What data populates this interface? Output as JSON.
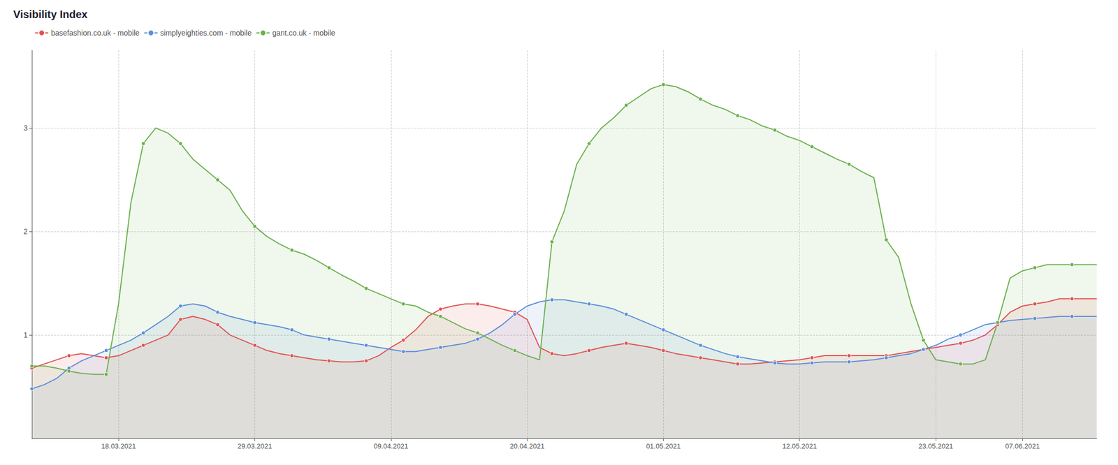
{
  "chart_data": {
    "type": "line",
    "title": "Visibility Index",
    "categories": [
      null,
      null,
      null,
      null,
      null,
      null,
      null,
      "18.03.2021",
      null,
      null,
      null,
      null,
      null,
      null,
      null,
      null,
      null,
      null,
      "29.03.2021",
      null,
      null,
      null,
      null,
      null,
      null,
      null,
      null,
      null,
      null,
      "09.04.2021",
      null,
      null,
      null,
      null,
      null,
      null,
      null,
      null,
      null,
      null,
      "20.04.2021",
      null,
      null,
      null,
      null,
      null,
      null,
      null,
      null,
      null,
      null,
      "01.05.2021",
      null,
      null,
      null,
      null,
      null,
      null,
      null,
      null,
      null,
      null,
      "12.05.2021",
      null,
      null,
      null,
      null,
      null,
      null,
      null,
      null,
      null,
      null,
      "23.05.2021",
      null,
      null,
      null,
      null,
      null,
      null,
      "07.06.2021",
      null,
      null,
      null,
      null,
      null,
      null
    ],
    "series": [
      {
        "name": "basefashion.co.uk - mobile",
        "color": "#e05252",
        "values": [
          0.68,
          0.72,
          0.76,
          0.8,
          0.82,
          0.8,
          0.78,
          0.8,
          0.85,
          0.9,
          0.95,
          1.0,
          1.15,
          1.18,
          1.15,
          1.1,
          1.0,
          0.95,
          0.9,
          0.85,
          0.82,
          0.8,
          0.78,
          0.76,
          0.75,
          0.74,
          0.74,
          0.75,
          0.8,
          0.88,
          0.95,
          1.05,
          1.18,
          1.25,
          1.28,
          1.3,
          1.3,
          1.28,
          1.25,
          1.22,
          1.15,
          0.88,
          0.82,
          0.8,
          0.82,
          0.85,
          0.88,
          0.9,
          0.92,
          0.9,
          0.88,
          0.85,
          0.82,
          0.8,
          0.78,
          0.76,
          0.74,
          0.72,
          0.72,
          0.73,
          0.74,
          0.75,
          0.76,
          0.78,
          0.8,
          0.8,
          0.8,
          0.8,
          0.8,
          0.8,
          0.82,
          0.84,
          0.86,
          0.88,
          0.9,
          0.92,
          0.95,
          1.0,
          1.1,
          1.22,
          1.28,
          1.3,
          1.32,
          1.35,
          1.35,
          1.35,
          1.35
        ]
      },
      {
        "name": "simplyeighties.com - mobile",
        "color": "#5b8dd9",
        "values": [
          0.48,
          0.52,
          0.58,
          0.68,
          0.75,
          0.8,
          0.85,
          0.9,
          0.95,
          1.02,
          1.1,
          1.18,
          1.28,
          1.3,
          1.28,
          1.22,
          1.18,
          1.15,
          1.12,
          1.1,
          1.08,
          1.05,
          1.0,
          0.98,
          0.96,
          0.94,
          0.92,
          0.9,
          0.88,
          0.86,
          0.84,
          0.84,
          0.86,
          0.88,
          0.9,
          0.92,
          0.96,
          1.02,
          1.1,
          1.2,
          1.28,
          1.32,
          1.34,
          1.34,
          1.32,
          1.3,
          1.28,
          1.25,
          1.2,
          1.15,
          1.1,
          1.05,
          1.0,
          0.95,
          0.9,
          0.86,
          0.82,
          0.79,
          0.77,
          0.75,
          0.73,
          0.72,
          0.72,
          0.73,
          0.74,
          0.74,
          0.74,
          0.75,
          0.76,
          0.78,
          0.8,
          0.82,
          0.86,
          0.9,
          0.96,
          1.0,
          1.05,
          1.1,
          1.12,
          1.14,
          1.15,
          1.16,
          1.17,
          1.18,
          1.18,
          1.18,
          1.18
        ]
      },
      {
        "name": "gant.co.uk - mobile",
        "color": "#6ab04c",
        "values": [
          0.7,
          0.7,
          0.68,
          0.65,
          0.63,
          0.62,
          0.62,
          1.3,
          2.28,
          2.85,
          3.0,
          2.95,
          2.85,
          2.7,
          2.6,
          2.5,
          2.4,
          2.2,
          2.05,
          1.95,
          1.88,
          1.82,
          1.78,
          1.72,
          1.65,
          1.58,
          1.52,
          1.45,
          1.4,
          1.35,
          1.3,
          1.28,
          1.22,
          1.18,
          1.12,
          1.06,
          1.02,
          0.96,
          0.9,
          0.85,
          0.8,
          0.76,
          1.9,
          2.2,
          2.65,
          2.85,
          3.0,
          3.1,
          3.22,
          3.3,
          3.38,
          3.42,
          3.4,
          3.35,
          3.28,
          3.22,
          3.18,
          3.12,
          3.08,
          3.02,
          2.98,
          2.92,
          2.88,
          2.82,
          2.76,
          2.7,
          2.65,
          2.58,
          2.52,
          1.92,
          1.75,
          1.3,
          0.95,
          0.76,
          0.74,
          0.72,
          0.72,
          0.76,
          1.12,
          1.55,
          1.62,
          1.65,
          1.68,
          1.68,
          1.68,
          1.68,
          1.68
        ]
      }
    ],
    "ylim": [
      0,
      3.75
    ],
    "yticks": [
      1,
      2,
      3
    ],
    "grid": true,
    "legend": "upper left",
    "marker": "circle"
  }
}
